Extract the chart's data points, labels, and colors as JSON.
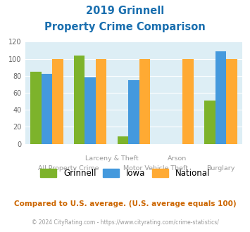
{
  "title_line1": "2019 Grinnell",
  "title_line2": "Property Crime Comparison",
  "title_color": "#1a6faf",
  "categories": [
    "All Property Crime",
    "Larceny & Theft",
    "Motor Vehicle Theft",
    "Arson",
    "Burglary"
  ],
  "grinnell": [
    85,
    104,
    9,
    0,
    51
  ],
  "iowa": [
    82,
    78,
    75,
    0,
    109
  ],
  "national": [
    100,
    100,
    100,
    100,
    100
  ],
  "grinnell_color": "#7db32b",
  "iowa_color": "#4499dd",
  "national_color": "#ffaa33",
  "ylim": [
    0,
    120
  ],
  "yticks": [
    0,
    20,
    40,
    60,
    80,
    100,
    120
  ],
  "plot_bg": "#ddeef5",
  "footer_text": "Compared to U.S. average. (U.S. average equals 100)",
  "footer_color": "#cc6600",
  "copyright_text": "© 2024 CityRating.com - https://www.cityrating.com/crime-statistics/",
  "copyright_color": "#999999",
  "copyright_link_color": "#3377cc",
  "legend_labels": [
    "Grinnell",
    "Iowa",
    "National"
  ]
}
